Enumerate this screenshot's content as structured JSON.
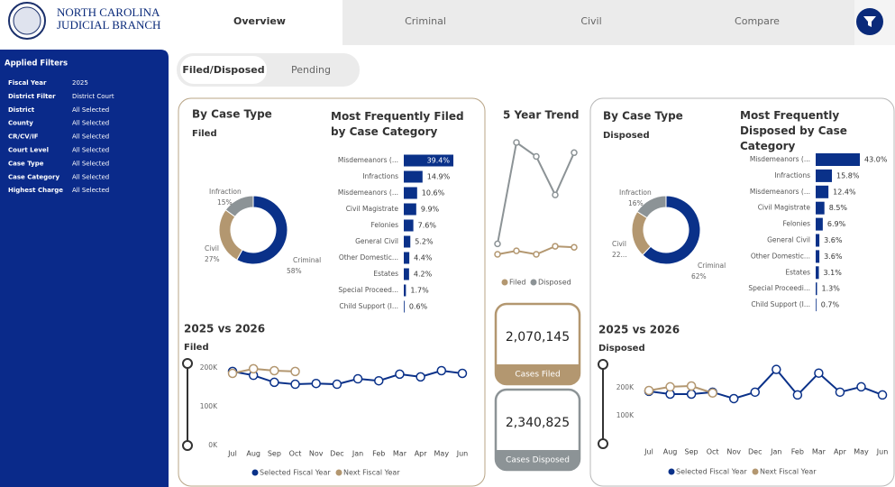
{
  "header": {
    "logo_line1": "NORTH CAROLINA",
    "logo_line2": "JUDICIAL BRANCH"
  },
  "nav": {
    "tabs": [
      "Overview",
      "Criminal",
      "Civil",
      "Compare"
    ],
    "active": 0
  },
  "filters": {
    "title": "Applied Filters",
    "rows": [
      [
        "Fiscal Year",
        "2025"
      ],
      [
        "District Filter",
        "District Court"
      ],
      [
        "District",
        "All Selected"
      ],
      [
        "County",
        "All Selected"
      ],
      [
        "CR/CV/IF",
        "All Selected"
      ],
      [
        "Court Level",
        "All Selected"
      ],
      [
        "Case Type",
        "All Selected"
      ],
      [
        "Case Category",
        "All Selected"
      ],
      [
        "Highest Charge",
        "All Selected"
      ]
    ]
  },
  "toggle": {
    "options": [
      "Filed/Disposed",
      "Pending"
    ],
    "active": 0
  },
  "cards": [
    {
      "value": "2,070,145",
      "label": "Cases Filed",
      "color": "#b39770"
    },
    {
      "value": "2,340,825",
      "label": "Cases Disposed",
      "color": "#8c9396"
    }
  ],
  "chart_data": [
    {
      "type": "pie",
      "title": "By Case Type",
      "subtitle": "Filed",
      "categories": [
        "Criminal",
        "Civil",
        "Infraction"
      ],
      "values": [
        58,
        27,
        15
      ],
      "value_labels": [
        "58%",
        "27%",
        "15%"
      ],
      "colors": [
        "#0a3189",
        "#b39770",
        "#8c9396"
      ]
    },
    {
      "type": "bar",
      "orientation": "horizontal",
      "title": "Most Frequently Filed by Case Category",
      "categories": [
        "Misdemeanors (...",
        "Infractions",
        "Misdemeanors (...",
        "Civil Magistrate",
        "Felonies",
        "General Civil",
        "Other Domestic...",
        "Estates",
        "Special Proceed...",
        "Child Support (I..."
      ],
      "values": [
        39.4,
        14.9,
        10.6,
        9.9,
        7.6,
        5.2,
        4.4,
        4.2,
        1.7,
        0.6
      ],
      "value_labels": [
        "39.4%",
        "14.9%",
        "10.6%",
        "9.9%",
        "7.6%",
        "5.2%",
        "4.4%",
        "4.2%",
        "1.7%",
        "0.6%"
      ],
      "color": "#0a3189"
    },
    {
      "type": "line",
      "title": "5 Year Trend",
      "series": [
        {
          "name": "Filed",
          "color": "#b39770",
          "values": [
            2050000,
            2060000,
            2050000,
            2073000,
            2070145
          ]
        },
        {
          "name": "Disposed",
          "color": "#8c9396",
          "values": [
            2080000,
            2370000,
            2330000,
            2220000,
            2340825
          ]
        }
      ]
    },
    {
      "type": "pie",
      "title": "By Case Type",
      "subtitle": "Disposed",
      "categories": [
        "Criminal",
        "Civil",
        "Infraction"
      ],
      "values": [
        62,
        22,
        16
      ],
      "value_labels": [
        "62%",
        "22...",
        "16%"
      ],
      "colors": [
        "#0a3189",
        "#b39770",
        "#8c9396"
      ]
    },
    {
      "type": "bar",
      "orientation": "horizontal",
      "title": "Most Frequently Disposed by Case Category",
      "categories": [
        "Misdemeanors (...",
        "Infractions",
        "Misdemeanors (...",
        "Civil Magistrate",
        "Felonies",
        "General Civil",
        "Other Domestic...",
        "Estates",
        "Special Proceedi...",
        "Child Support (I..."
      ],
      "values": [
        43.0,
        15.8,
        12.4,
        8.5,
        6.9,
        3.6,
        3.6,
        3.1,
        1.3,
        0.7
      ],
      "value_labels": [
        "43.0%",
        "15.8%",
        "12.4%",
        "8.5%",
        "6.9%",
        "3.6%",
        "3.6%",
        "3.1%",
        "1.3%",
        "0.7%"
      ],
      "color": "#0a3189"
    },
    {
      "type": "line",
      "title": "2025 vs 2026",
      "subtitle": "Filed",
      "categories": [
        "Jul",
        "Aug",
        "Sep",
        "Oct",
        "Nov",
        "Dec",
        "Jan",
        "Feb",
        "Mar",
        "Apr",
        "May",
        "Jun"
      ],
      "series": [
        {
          "name": "Selected Fiscal Year",
          "color": "#0a3189",
          "values": [
            191000,
            181000,
            163000,
            158000,
            160000,
            158000,
            172000,
            167000,
            184000,
            177000,
            193000,
            186000
          ]
        },
        {
          "name": "Next Fiscal Year",
          "color": "#b39770",
          "values": [
            186000,
            198000,
            193000,
            191000,
            null,
            null,
            null,
            null,
            null,
            null,
            null,
            null
          ]
        }
      ],
      "ylim": [
        0,
        220000
      ],
      "yticks": [
        {
          "value": 0,
          "label": "0K"
        },
        {
          "value": 100000,
          "label": "100K"
        },
        {
          "value": 200000,
          "label": "200K"
        }
      ]
    },
    {
      "type": "line",
      "title": "2025 vs 2026",
      "subtitle": "Disposed",
      "categories": [
        "Jul",
        "Aug",
        "Sep",
        "Oct",
        "Nov",
        "Dec",
        "Jan",
        "Feb",
        "Mar",
        "Apr",
        "May",
        "Jun"
      ],
      "series": [
        {
          "name": "Selected Fiscal Year",
          "color": "#0a3189",
          "values": [
            187000,
            177000,
            177000,
            184000,
            161000,
            184000,
            265000,
            174000,
            252000,
            184000,
            203000,
            174000
          ]
        },
        {
          "name": "Next Fiscal Year",
          "color": "#b39770",
          "values": [
            190000,
            203000,
            206000,
            181000,
            null,
            null,
            null,
            null,
            null,
            null,
            null,
            null
          ]
        }
      ],
      "ylim": [
        0,
        280000
      ],
      "yticks": [
        {
          "value": 100000,
          "label": "100K"
        },
        {
          "value": 200000,
          "label": "200K"
        }
      ]
    }
  ]
}
